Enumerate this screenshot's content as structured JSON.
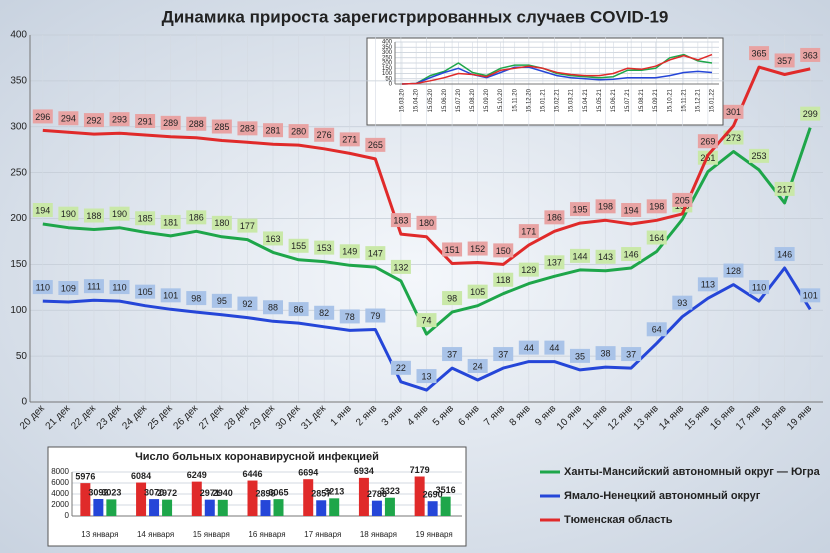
{
  "chart_data": [
    {
      "type": "line",
      "title": "Динамика прироста зарегистрированных случаев COVID-19",
      "categories": [
        "20 дек",
        "21 дек",
        "22 дек",
        "23 дек",
        "24 дек",
        "25 дек",
        "26 дек",
        "27 дек",
        "28 дек",
        "29 дек",
        "30 дек",
        "31 дек",
        "1 янв",
        "2 янв",
        "3 янв",
        "4 янв",
        "5 янв",
        "6 янв",
        "7 янв",
        "8 янв",
        "9 янв",
        "10 янв",
        "11 янв",
        "12 янв",
        "13 янв",
        "14 янв",
        "15 янв",
        "16 янв",
        "17 янв",
        "18 янв",
        "19 янв"
      ],
      "series": [
        {
          "name": "Ханты-Мансийский автономный округ — Югра",
          "color": "#1ea64a",
          "label_bg": "#c9e8a8",
          "values": [
            194,
            190,
            188,
            190,
            185,
            181,
            186,
            180,
            177,
            163,
            155,
            153,
            149,
            147,
            132,
            74,
            98,
            105,
            118,
            129,
            137,
            144,
            143,
            146,
            164,
            199,
            251,
            273,
            253,
            217,
            299
          ]
        },
        {
          "name": "Ямало-Ненецкий автономный округ",
          "color": "#2546d8",
          "label_bg": "#a9c3e8",
          "values": [
            110,
            109,
            111,
            110,
            105,
            101,
            98,
            95,
            92,
            88,
            86,
            82,
            78,
            79,
            22,
            13,
            37,
            24,
            37,
            44,
            44,
            35,
            38,
            37,
            64,
            93,
            113,
            128,
            110,
            146,
            101
          ]
        },
        {
          "name": "Тюменская область",
          "color": "#e02a2a",
          "label_bg": "#e8a3a3",
          "values": [
            296,
            294,
            292,
            293,
            291,
            289,
            288,
            285,
            283,
            281,
            280,
            276,
            271,
            265,
            183,
            180,
            151,
            152,
            150,
            171,
            186,
            195,
            198,
            194,
            198,
            205,
            269,
            301,
            365,
            357,
            363
          ]
        }
      ],
      "ylim": [
        0,
        400
      ],
      "yticks": [
        0,
        50,
        100,
        150,
        200,
        250,
        300,
        350,
        400
      ],
      "grid": true
    },
    {
      "type": "line",
      "categories": [
        "15.03.20",
        "15.04.20",
        "15.05.20",
        "15.06.20",
        "15.07.20",
        "15.08.20",
        "15.09.20",
        "15.10.20",
        "15.11.20",
        "15.12.20",
        "15.01.21",
        "15.02.21",
        "15.03.21",
        "15.04.21",
        "15.05.21",
        "15.06.21",
        "15.07.21",
        "15.08.21",
        "15.09.21",
        "15.10.21",
        "15.11.21",
        "15.12.21",
        "15.01.22"
      ],
      "series": [
        {
          "color": "#1ea64a",
          "values": [
            0,
            5,
            80,
            120,
            200,
            110,
            80,
            150,
            180,
            180,
            150,
            100,
            80,
            70,
            60,
            70,
            130,
            130,
            150,
            250,
            280,
            220,
            200
          ]
        },
        {
          "color": "#2546d8",
          "values": [
            0,
            5,
            60,
            110,
            150,
            90,
            60,
            110,
            160,
            160,
            120,
            80,
            60,
            50,
            40,
            45,
            60,
            60,
            60,
            80,
            110,
            120,
            110
          ]
        },
        {
          "color": "#e02a2a",
          "values": [
            0,
            5,
            30,
            60,
            100,
            90,
            70,
            130,
            150,
            170,
            150,
            110,
            90,
            80,
            80,
            100,
            150,
            140,
            170,
            230,
            270,
            230,
            280
          ]
        }
      ],
      "ylim": [
        0,
        400
      ],
      "yticks": [
        0,
        50,
        100,
        150,
        200,
        250,
        300,
        350,
        400
      ],
      "grid": true
    },
    {
      "type": "bar",
      "title": "Число больных коронавирусной  инфекцией",
      "categories": [
        "13 января",
        "14 января",
        "15 января",
        "16 января",
        "17 января",
        "18 января",
        "19 января"
      ],
      "series": [
        {
          "color": "#e02a2a",
          "values": [
            5976,
            6084,
            6249,
            6446,
            6694,
            6934,
            7179
          ]
        },
        {
          "color": "#2546d8",
          "values": [
            3092,
            3070,
            2971,
            2898,
            2857,
            2786,
            2690
          ]
        },
        {
          "color": "#1ea64a",
          "values": [
            3023,
            2972,
            2940,
            3065,
            3213,
            3323,
            3516
          ]
        }
      ],
      "ylim": [
        0,
        8000
      ],
      "yticks": [
        0,
        2000,
        4000,
        6000,
        8000
      ],
      "grid": true
    }
  ]
}
